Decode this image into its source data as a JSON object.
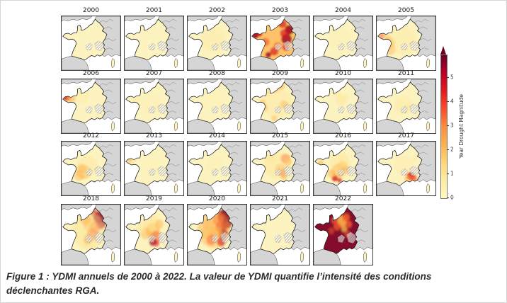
{
  "figure": {
    "caption_lines": [
      "Figure 1 : YDMI annuels de 2000 à 2022. La valeur de YDMI quantifie l’intensité des conditions",
      "déclenchantes RGA."
    ]
  },
  "chart_data": {
    "type": "heatmap",
    "subtype": "choropleth_small_multiples_france_maps",
    "title": "",
    "years": [
      "2000",
      "2001",
      "2002",
      "2003",
      "2004",
      "2005",
      "2006",
      "2007",
      "2008",
      "2009",
      "2010",
      "2011",
      "2012",
      "2013",
      "2014",
      "2015",
      "2016",
      "2017",
      "2018",
      "2019",
      "2020",
      "2021",
      "2022"
    ],
    "mean_ydmi_estimate": [
      0.2,
      0.2,
      0.3,
      3.5,
      0.2,
      0.8,
      0.5,
      0.3,
      0.2,
      0.8,
      0.4,
      0.3,
      0.7,
      0.3,
      0.2,
      1.0,
      1.3,
      0.7,
      2.0,
      1.6,
      2.4,
      0.2,
      4.5
    ],
    "colorbar": {
      "label": "Year Drought Magnitude",
      "ticks": [
        0,
        1,
        2,
        3,
        4,
        5
      ],
      "vmin": 0,
      "vmax": 5,
      "extend": "max",
      "colormap": "YlOrRd",
      "base_land_color": "#fcf3c0",
      "neighbor_land_color": "#d5d5d5",
      "sea_color": "#ffffff",
      "max_color": "#800026"
    },
    "spatial_pattern": {
      "palette": {
        "o1": "#fee391",
        "o2": "#fdb24c",
        "o3": "#fc5e2e",
        "r": "#d7191c",
        "dr": "#99001f",
        "m": "#7f0022"
      },
      "years": {
        "2000": [],
        "2001": [],
        "2002": [
          [
            45,
            40,
            22,
            "o1",
            0.25
          ]
        ],
        "2003": [
          [
            46,
            40,
            40,
            "o2",
            0.75
          ],
          [
            8,
            32,
            6,
            "dr",
            0.9
          ],
          [
            15,
            30,
            5,
            "r",
            0.8
          ],
          [
            54,
            13,
            7,
            "r",
            0.7
          ],
          [
            66,
            23,
            8,
            "dr",
            0.85
          ],
          [
            61,
            39,
            9,
            "dr",
            0.8
          ],
          [
            57,
            29,
            7,
            "r",
            0.7
          ],
          [
            40,
            60,
            7,
            "r",
            0.7
          ],
          [
            30,
            66,
            5,
            "dr",
            0.8
          ],
          [
            25,
            44,
            7,
            "o3",
            0.7
          ],
          [
            60,
            53,
            6,
            "r",
            0.7
          ],
          [
            46,
            51,
            7,
            "o3",
            0.6
          ]
        ],
        "2004": [
          [
            45,
            40,
            20,
            "o1",
            0.15
          ]
        ],
        "2005": [
          [
            21,
            46,
            10,
            "o2",
            0.5
          ],
          [
            23,
            57,
            9,
            "o2",
            0.45
          ],
          [
            17,
            37,
            7,
            "o2",
            0.4
          ],
          [
            44,
            42,
            24,
            "o1",
            0.3
          ],
          [
            8,
            33,
            5,
            "o3",
            0.5
          ]
        ],
        "2006": [
          [
            7,
            32,
            4,
            "r",
            0.95
          ],
          [
            11,
            32,
            5,
            "o3",
            0.75
          ],
          [
            17,
            33,
            7,
            "o2",
            0.5
          ],
          [
            35,
            28,
            12,
            "o1",
            0.3
          ]
        ],
        "2007": [
          [
            20,
            36,
            8,
            "o1",
            0.3
          ],
          [
            45,
            42,
            18,
            "o1",
            0.15
          ]
        ],
        "2008": [
          [
            45,
            40,
            18,
            "o1",
            0.12
          ]
        ],
        "2009": [
          [
            40,
            14,
            9,
            "o2",
            0.6
          ],
          [
            51,
            11,
            7,
            "o2",
            0.55
          ],
          [
            30,
            21,
            8,
            "o1",
            0.45
          ],
          [
            45,
            40,
            26,
            "o1",
            0.35
          ],
          [
            57,
            43,
            7,
            "o2",
            0.4
          ],
          [
            23,
            49,
            6,
            "o2",
            0.45
          ],
          [
            40,
            67,
            5,
            "o2",
            0.45
          ],
          [
            20,
            40,
            6,
            "o2",
            0.4
          ]
        ],
        "2010": [
          [
            47,
            36,
            9,
            "o1",
            0.45
          ],
          [
            40,
            24,
            7,
            "o1",
            0.35
          ],
          [
            55,
            30,
            6,
            "o1",
            0.3
          ]
        ],
        "2011": [
          [
            45,
            44,
            16,
            "o1",
            0.3
          ],
          [
            52,
            50,
            7,
            "o1",
            0.35
          ]
        ],
        "2012": [
          [
            38,
            52,
            12,
            "o2",
            0.5
          ],
          [
            30,
            58,
            9,
            "o2",
            0.45
          ],
          [
            44,
            42,
            18,
            "o1",
            0.35
          ],
          [
            34,
            46,
            8,
            "o2",
            0.4
          ]
        ],
        "2013": [
          [
            9,
            32,
            4,
            "o2",
            0.65
          ],
          [
            15,
            33,
            5,
            "o1",
            0.45
          ],
          [
            45,
            42,
            16,
            "o1",
            0.12
          ]
        ],
        "2014": [
          [
            45,
            40,
            15,
            "o1",
            0.15
          ]
        ],
        "2015": [
          [
            59,
            29,
            8,
            "o3",
            0.6
          ],
          [
            63,
            35,
            7,
            "o2",
            0.6
          ],
          [
            50,
            47,
            9,
            "o2",
            0.5
          ],
          [
            55,
            54,
            7,
            "o3",
            0.5
          ],
          [
            45,
            40,
            24,
            "o1",
            0.4
          ],
          [
            57,
            61,
            5,
            "o2",
            0.5
          ],
          [
            36,
            30,
            8,
            "o1",
            0.35
          ]
        ],
        "2016": [
          [
            42,
            50,
            12,
            "o2",
            0.6
          ],
          [
            49,
            42,
            9,
            "o2",
            0.5
          ],
          [
            36,
            63,
            5,
            "r",
            0.8
          ],
          [
            44,
            66,
            4,
            "r",
            0.7
          ],
          [
            30,
            55,
            7,
            "o2",
            0.5
          ],
          [
            44,
            36,
            18,
            "o1",
            0.4
          ],
          [
            55,
            49,
            7,
            "o2",
            0.45
          ],
          [
            12,
            36,
            5,
            "o2",
            0.5
          ]
        ],
        "2017": [
          [
            58,
            59,
            7,
            "r",
            0.8
          ],
          [
            63,
            63,
            6,
            "o3",
            0.7
          ],
          [
            52,
            63,
            5,
            "o2",
            0.55
          ],
          [
            45,
            40,
            16,
            "o1",
            0.2
          ],
          [
            64,
            30,
            5,
            "o1",
            0.35
          ]
        ],
        "2018": [
          [
            63,
            20,
            9,
            "dr",
            0.85
          ],
          [
            67,
            29,
            8,
            "dr",
            0.8
          ],
          [
            54,
            12,
            6,
            "r",
            0.6
          ],
          [
            57,
            35,
            9,
            "o3",
            0.6
          ],
          [
            48,
            30,
            11,
            "o2",
            0.55
          ],
          [
            52,
            46,
            9,
            "o3",
            0.6
          ],
          [
            46,
            40,
            28,
            "o1",
            0.5
          ],
          [
            40,
            22,
            9,
            "o2",
            0.45
          ],
          [
            44,
            54,
            7,
            "o2",
            0.5
          ]
        ],
        "2019": [
          [
            48,
            40,
            12,
            "o2",
            0.6
          ],
          [
            53,
            49,
            9,
            "o3",
            0.5
          ],
          [
            48,
            57,
            6,
            "dr",
            0.7
          ],
          [
            54,
            59,
            5,
            "r",
            0.6
          ],
          [
            45,
            28,
            14,
            "o1",
            0.5
          ],
          [
            59,
            30,
            7,
            "o2",
            0.5
          ],
          [
            36,
            44,
            9,
            "o2",
            0.45
          ],
          [
            28,
            36,
            8,
            "o1",
            0.4
          ]
        ],
        "2020": [
          [
            61,
            18,
            10,
            "dr",
            0.9
          ],
          [
            66,
            28,
            9,
            "dr",
            0.85
          ],
          [
            57,
            34,
            9,
            "r",
            0.7
          ],
          [
            52,
            24,
            9,
            "o3",
            0.6
          ],
          [
            61,
            45,
            8,
            "dr",
            0.8
          ],
          [
            48,
            44,
            11,
            "o2",
            0.6
          ],
          [
            45,
            38,
            28,
            "o2",
            0.45
          ],
          [
            36,
            30,
            9,
            "o2",
            0.5
          ],
          [
            40,
            54,
            8,
            "o3",
            0.5
          ],
          [
            57,
            57,
            7,
            "r",
            0.6
          ],
          [
            30,
            44,
            8,
            "o2",
            0.4
          ]
        ],
        "2021": [],
        "2022": [
          [
            46,
            42,
            50,
            "m",
            0.95
          ],
          [
            48,
            26,
            8,
            "o2",
            0.9
          ],
          [
            55,
            20,
            6,
            "o3",
            0.85
          ],
          [
            40,
            33,
            6,
            "o3",
            0.75
          ],
          [
            52,
            37,
            5,
            "o2",
            0.8
          ],
          [
            60,
            30,
            5,
            "o3",
            0.8
          ],
          [
            35,
            24,
            5,
            "o3",
            0.7
          ],
          [
            44,
            18,
            5,
            "o2",
            0.7
          ],
          [
            58,
            45,
            5,
            "o3",
            0.6
          ],
          [
            30,
            40,
            5,
            "o3",
            0.5
          ]
        ]
      }
    }
  }
}
